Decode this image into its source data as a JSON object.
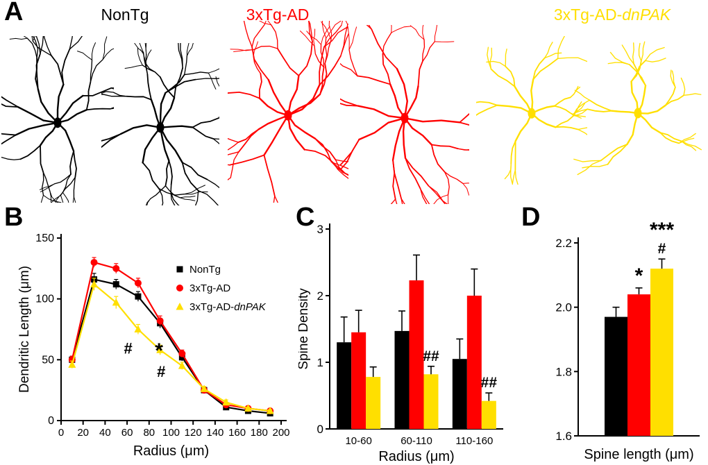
{
  "figure": {
    "panel_labels": {
      "a": "A",
      "b": "B",
      "c": "C",
      "d": "D"
    }
  },
  "panel_a": {
    "groups": [
      {
        "label": "NonTg",
        "label_italic": "",
        "color": "#000000"
      },
      {
        "label": "3xTg-AD",
        "label_italic": "",
        "color": "#FF0000"
      },
      {
        "label": "3xTg-AD-",
        "label_italic": "dnPAK",
        "color": "#FFDF00"
      }
    ]
  },
  "chart_data": [
    {
      "id": "dendritic-length",
      "type": "line",
      "xlabel": "Radius (μm)",
      "ylabel": "Dendritic Length (μm)",
      "xlim": [
        0,
        200
      ],
      "ylim": [
        0,
        150
      ],
      "xticks": [
        0,
        20,
        40,
        60,
        80,
        100,
        120,
        140,
        160,
        180,
        200
      ],
      "xtick_labels": [
        "0",
        "20",
        "40",
        "60",
        "80",
        "100",
        "120",
        "140",
        "160",
        "180",
        "200"
      ],
      "yticks": [
        0,
        50,
        100,
        150
      ],
      "ytick_labels": [
        "0",
        "50",
        "100",
        "150"
      ],
      "x": [
        10,
        30,
        50,
        70,
        90,
        110,
        130,
        150,
        170,
        190
      ],
      "series": [
        {
          "name": "NonTg",
          "name_italic": "",
          "color": "#000000",
          "marker": "square",
          "values": [
            50,
            116,
            112,
            102,
            80,
            52,
            25,
            11,
            8,
            6
          ],
          "errors": [
            3,
            5,
            4,
            4,
            4,
            3,
            2,
            2,
            1,
            1
          ]
        },
        {
          "name": "3xTg-AD",
          "name_italic": "",
          "color": "#FF0000",
          "marker": "circle",
          "values": [
            50,
            130,
            125,
            113,
            82,
            55,
            25,
            13,
            10,
            8
          ],
          "errors": [
            3,
            4,
            4,
            4,
            4,
            3,
            2,
            2,
            1,
            1
          ]
        },
        {
          "name": "3xTg-AD-",
          "name_italic": "dnPAK",
          "color": "#FFDF00",
          "marker": "triangle",
          "values": [
            46,
            112,
            97,
            75,
            58,
            45,
            26,
            15,
            10,
            8
          ],
          "errors": [
            3,
            5,
            5,
            4,
            4,
            3,
            2,
            2,
            1,
            1
          ]
        }
      ],
      "annotations": [
        {
          "text": "#",
          "x": 61,
          "y": 55
        },
        {
          "text": "*",
          "x": 89,
          "y": 52
        },
        {
          "text": "#",
          "x": 91,
          "y": 36
        }
      ],
      "legend_position": "upper right",
      "grid": false
    },
    {
      "id": "spine-density",
      "type": "bar",
      "xlabel": "Radius (μm)",
      "ylabel": "Spine Density",
      "ylim": [
        0,
        3
      ],
      "yticks": [
        0,
        1,
        2,
        3
      ],
      "ytick_labels": [
        "0",
        "1",
        "2",
        "3"
      ],
      "categories": [
        "10-60",
        "60-110",
        "110-160"
      ],
      "series": [
        {
          "name": "NonTg",
          "color": "#000000",
          "values": [
            1.3,
            1.47,
            1.05
          ],
          "errors": [
            0.38,
            0.3,
            0.3
          ]
        },
        {
          "name": "3xTg-AD",
          "color": "#FF0000",
          "values": [
            1.45,
            2.23,
            2.0
          ],
          "errors": [
            0.33,
            0.38,
            0.4
          ]
        },
        {
          "name": "3xTg-AD-dnPAK",
          "color": "#FFDF00",
          "values": [
            0.78,
            0.82,
            0.42
          ],
          "errors": [
            0.15,
            0.12,
            0.12
          ]
        }
      ],
      "annotations": [
        {
          "lines": [
            "##"
          ],
          "category": 1,
          "series": 2
        },
        {
          "lines": [
            "##"
          ],
          "category": 2,
          "series": 2
        }
      ],
      "grid": false
    },
    {
      "id": "spine-length",
      "type": "bar",
      "xlabel": "Spine length (μm)",
      "ylabel": "",
      "ylim": [
        1.6,
        2.2
      ],
      "yticks": [
        1.6,
        1.8,
        2.0,
        2.2
      ],
      "ytick_labels": [
        "1.6",
        "1.8",
        "2.0",
        "2.2"
      ],
      "categories": [
        ""
      ],
      "series": [
        {
          "name": "NonTg",
          "color": "#000000",
          "values": [
            1.97
          ],
          "errors": [
            0.03
          ]
        },
        {
          "name": "3xTg-AD",
          "color": "#FF0000",
          "values": [
            2.04
          ],
          "errors": [
            0.02
          ]
        },
        {
          "name": "3xTg-AD-dnPAK",
          "color": "#FFDF00",
          "values": [
            2.12
          ],
          "errors": [
            0.03
          ]
        }
      ],
      "annotations": [
        {
          "lines": [
            "*"
          ],
          "category": 0,
          "series": 1
        },
        {
          "lines": [
            "#",
            "***"
          ],
          "category": 0,
          "series": 2
        }
      ],
      "grid": false
    }
  ]
}
